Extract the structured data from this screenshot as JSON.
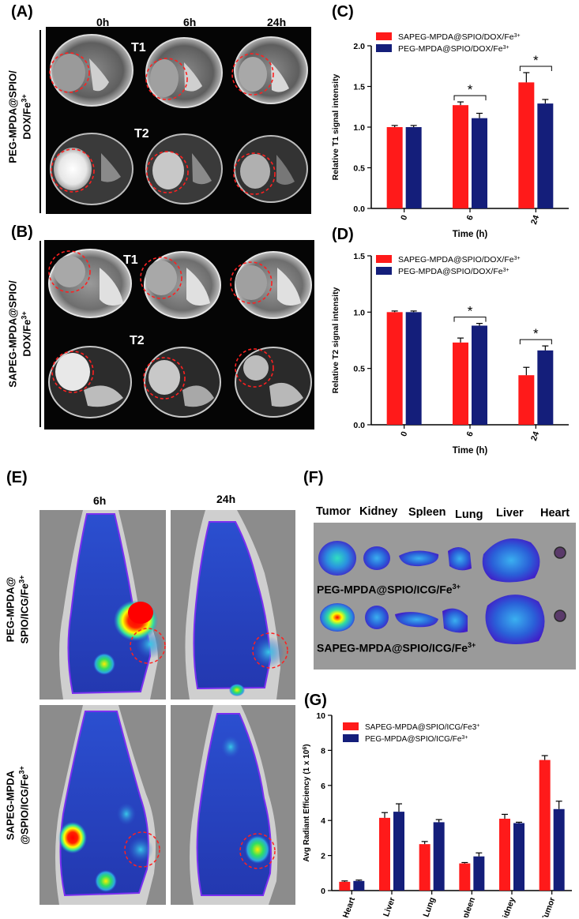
{
  "panels": {
    "A": {
      "letter": "(A)",
      "times": [
        "0h",
        "6h",
        "24h"
      ],
      "row_label": "PEG-MPDA@SPIO/DOX/Fe3+",
      "row_label_line1": "PEG-MPDA@SPIO/",
      "row_label_line2": "DOX/Fe",
      "row_label_sup": "3+",
      "seq1": "T1",
      "seq2": "T2"
    },
    "B": {
      "letter": "(B)",
      "row_label_line1": "SAPEG-MPDA@SPIO/",
      "row_label_line2": "DOX/Fe",
      "row_label_sup": "3+",
      "seq1": "T1",
      "seq2": "T2"
    },
    "C": {
      "letter": "(C)"
    },
    "D": {
      "letter": "(D)"
    },
    "E": {
      "letter": "(E)",
      "times": [
        "6h",
        "24h"
      ],
      "row1_line1": "PEG-MPDA@",
      "row1_line2": "SPIO/ICG/Fe",
      "row2_line1": "SAPEG-MPDA",
      "row2_line2": "@SPIO/ICG/Fe",
      "sup": "3+"
    },
    "F": {
      "letter": "(F)",
      "organs": [
        "Tumor",
        "Kidney",
        "Spleen",
        "Lung",
        "Liver",
        "Heart"
      ],
      "row1": "PEG-MPDA@SPIO/ICG/Fe",
      "row2": "SAPEG-MPDA@SPIO/ICG/Fe",
      "sup": "3+"
    },
    "G": {
      "letter": "(G)"
    }
  },
  "chart_data": [
    {
      "id": "C",
      "type": "bar",
      "categories": [
        "0",
        "6",
        "24"
      ],
      "series": [
        {
          "name": "SAPEG-MPDA@SPIO/DOX/Fe3+",
          "name_base": "SAPEG-MPDA@SPIO/DOX/Fe",
          "name_sup": "3+",
          "color": "#ff1a1a",
          "values": [
            1.0,
            1.27,
            1.55
          ],
          "errors": [
            0.02,
            0.04,
            0.12
          ]
        },
        {
          "name": "PEG-MPDA@SPIO/DOX/Fe3+",
          "name_base": "PEG-MPDA@SPIO/DOX/Fe",
          "name_sup": "3+",
          "color": "#141e7a",
          "values": [
            1.0,
            1.11,
            1.29
          ],
          "errors": [
            0.02,
            0.06,
            0.05
          ]
        }
      ],
      "xlabel": "Time (h)",
      "ylabel": "Relative T1 signal intensity",
      "ylim": [
        0,
        2.0
      ],
      "yticks": [
        "0.0",
        "0.5",
        "1.0",
        "1.5",
        "2.0"
      ],
      "significance": [
        "*",
        "*"
      ]
    },
    {
      "id": "D",
      "type": "bar",
      "categories": [
        "0",
        "6",
        "24"
      ],
      "series": [
        {
          "name": "SAPEG-MPDA@SPIO/DOX/Fe3+",
          "name_base": "SAPEG-MPDA@SPIO/DOX/Fe",
          "name_sup": "3+",
          "color": "#ff1a1a",
          "values": [
            1.0,
            0.73,
            0.44
          ],
          "errors": [
            0.01,
            0.04,
            0.07
          ]
        },
        {
          "name": "PEG-MPDA@SPIO/DOX/Fe3+",
          "name_base": "PEG-MPDA@SPIO/DOX/Fe",
          "name_sup": "3+",
          "color": "#141e7a",
          "values": [
            1.0,
            0.88,
            0.66
          ],
          "errors": [
            0.01,
            0.02,
            0.04
          ]
        }
      ],
      "xlabel": "Time (h)",
      "ylabel": "Relative T2 signal intensity",
      "ylim": [
        0,
        1.5
      ],
      "yticks": [
        "0.0",
        "0.5",
        "1.0",
        "1.5"
      ],
      "significance": [
        "*",
        "*"
      ]
    },
    {
      "id": "G",
      "type": "bar",
      "categories": [
        "Heart",
        "Liver",
        "Lung",
        "Spleen",
        "Kidney",
        "Tumor"
      ],
      "series": [
        {
          "name": "SAPEG-MPDA@SPIO/ICG/Fe3+",
          "name_base": "SAPEG-MPDA@SPIO/ICG/Fe3",
          "name_sup": "+",
          "color": "#ff1a1a",
          "values": [
            0.5,
            4.15,
            2.65,
            1.55,
            4.1,
            7.45
          ],
          "errors": [
            0.05,
            0.3,
            0.15,
            0.05,
            0.25,
            0.25
          ]
        },
        {
          "name": "PEG-MPDA@SPIO/ICG/Fe3+",
          "name_base": "PEG-MPDA@SPIO/ICG/Fe",
          "name_sup": "3+",
          "color": "#141e7a",
          "values": [
            0.55,
            4.5,
            3.9,
            1.95,
            3.85,
            4.65
          ],
          "errors": [
            0.05,
            0.45,
            0.15,
            0.2,
            0.05,
            0.45
          ]
        }
      ],
      "xlabel": "",
      "ylabel": "Avg Radiant Efficiency (1 x 10",
      "ylabel_sup": "6",
      "ylabel_end": ")",
      "ylim": [
        0,
        10
      ],
      "yticks": [
        "0",
        "2",
        "4",
        "6",
        "8",
        "10"
      ]
    }
  ]
}
